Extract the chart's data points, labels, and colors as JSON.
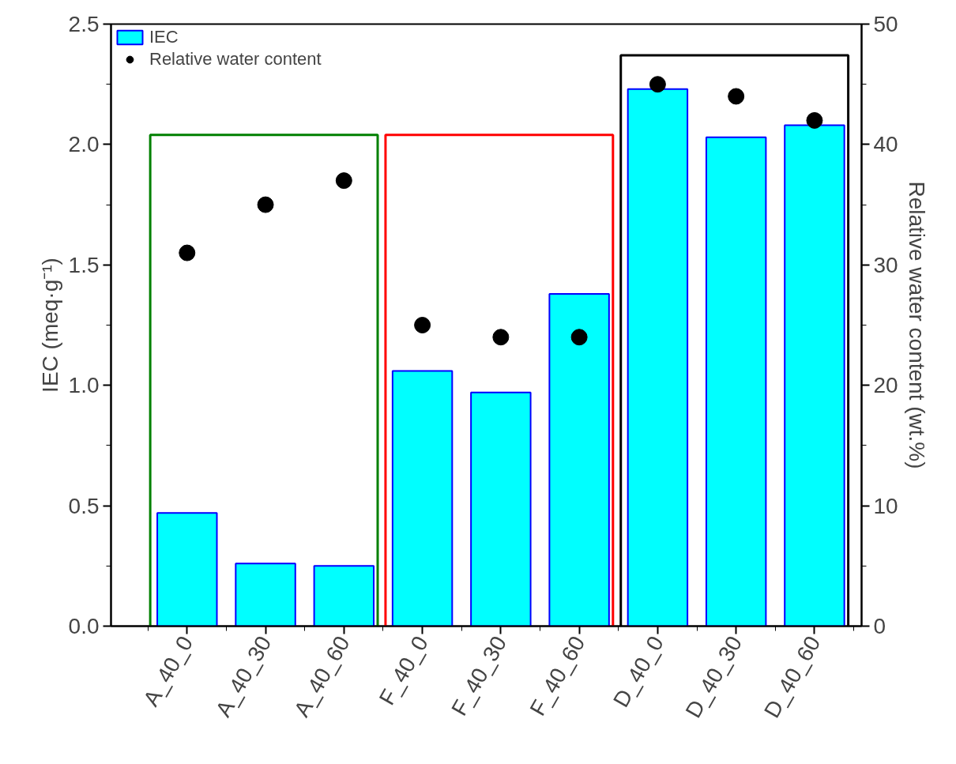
{
  "chart_data": {
    "type": "bar",
    "categories": [
      "A_40_0",
      "A_40_30",
      "A_40_60",
      "F_40_0",
      "F_40_30",
      "F_40_60",
      "D_40_0",
      "D_40_30",
      "D_40_60"
    ],
    "ylabel": "IEC (meq·g⁻¹)",
    "y2label": "Relative water content (wt.%)",
    "series": [
      {
        "name": "IEC",
        "color": "#00ffff",
        "values": [
          0.47,
          0.26,
          0.25,
          1.06,
          0.97,
          1.38,
          2.23,
          2.03,
          2.08
        ]
      },
      {
        "name": "Relative water content",
        "type": "scatter",
        "color": "#000000",
        "axis": "y2",
        "values": [
          31,
          35,
          37,
          25,
          24,
          24,
          45,
          44,
          42
        ]
      }
    ],
    "ylim": [
      0,
      2.5
    ],
    "yticks": [
      {
        "value": 0,
        "label": "0.0"
      },
      {
        "value": 0.5,
        "label": "0.5"
      },
      {
        "value": 1,
        "label": "1.0"
      },
      {
        "value": 1.5,
        "label": "1.5"
      },
      {
        "value": 2,
        "label": "2.0"
      },
      {
        "value": 2.5,
        "label": "2.5"
      }
    ],
    "y2lim": [
      0,
      50
    ],
    "y2ticks": [
      0,
      10,
      20,
      30,
      40,
      50
    ],
    "marker": "circle",
    "legend": "top left",
    "grid": false
  }
}
